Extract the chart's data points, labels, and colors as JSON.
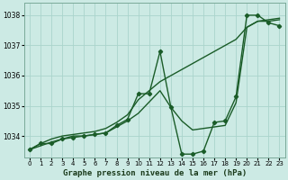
{
  "xlabel": "Graphe pression niveau de la mer (hPa)",
  "background_color": "#cceae4",
  "grid_color": "#aad4cc",
  "line_color": "#1a5c28",
  "ylim": [
    1033.3,
    1038.4
  ],
  "xlim": [
    -0.5,
    23.5
  ],
  "yticks": [
    1034,
    1035,
    1036,
    1037,
    1038
  ],
  "xticks": [
    0,
    1,
    2,
    3,
    4,
    5,
    6,
    7,
    8,
    9,
    10,
    11,
    12,
    13,
    14,
    15,
    16,
    17,
    18,
    19,
    20,
    21,
    22,
    23
  ],
  "series": [
    {
      "x": [
        0,
        1,
        2,
        3,
        4,
        5,
        6,
        7,
        8,
        9,
        10,
        11,
        12,
        13,
        14,
        15,
        16,
        17,
        18,
        19,
        20,
        21,
        22,
        23
      ],
      "y": [
        1033.55,
        1033.75,
        1033.75,
        1033.9,
        1033.95,
        1034.0,
        1034.05,
        1034.1,
        1034.35,
        1034.55,
        1035.4,
        1035.4,
        1036.8,
        1034.95,
        1033.4,
        1033.4,
        1033.5,
        1034.45,
        1034.5,
        1035.3,
        1038.0,
        1038.0,
        1037.75,
        1037.65
      ],
      "marker": true,
      "linewidth": 1.0
    },
    {
      "x": [
        0,
        1,
        2,
        3,
        4,
        5,
        6,
        7,
        8,
        9,
        10,
        11,
        12,
        13,
        14,
        15,
        16,
        17,
        18,
        19,
        20,
        21,
        22,
        23
      ],
      "y": [
        1033.55,
        1033.75,
        1033.9,
        1034.0,
        1034.05,
        1034.1,
        1034.15,
        1034.25,
        1034.45,
        1034.7,
        1035.2,
        1035.5,
        1035.8,
        1036.0,
        1036.2,
        1036.4,
        1036.6,
        1036.8,
        1037.0,
        1037.2,
        1037.6,
        1037.8,
        1037.85,
        1037.9
      ],
      "marker": false,
      "linewidth": 1.0
    },
    {
      "x": [
        0,
        2,
        3,
        4,
        5,
        6,
        7,
        8,
        9,
        10,
        12,
        13,
        14,
        15,
        18,
        19,
        20,
        21,
        22,
        23
      ],
      "y": [
        1033.55,
        1033.8,
        1033.9,
        1034.0,
        1034.0,
        1034.05,
        1034.1,
        1034.3,
        1034.5,
        1034.75,
        1035.5,
        1034.95,
        1034.5,
        1034.2,
        1034.35,
        1035.1,
        1037.6,
        1037.8,
        1037.8,
        1037.85
      ],
      "marker": false,
      "linewidth": 1.0
    }
  ]
}
